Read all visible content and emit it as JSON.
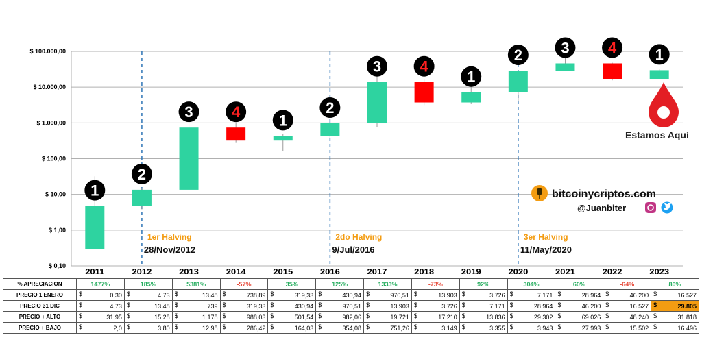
{
  "chart_data": {
    "type": "candlestick",
    "y_scale": "log",
    "ylim": [
      0.1,
      100000
    ],
    "y_ticks": [
      "$ 100.000,00",
      "$ 10.000,00",
      "$ 1.000,00",
      "$ 100,00",
      "$ 10,00",
      "$ 1,00",
      "$ 0,10"
    ],
    "categories": [
      "2011",
      "2012",
      "2013",
      "2014",
      "2015",
      "2016",
      "2017",
      "2018",
      "2019",
      "2020",
      "2021",
      "2022",
      "2023"
    ],
    "open": [
      0.3,
      4.73,
      13.48,
      738.89,
      319.33,
      430.94,
      970.51,
      13903,
      3726,
      7171,
      28964,
      46200,
      16527
    ],
    "close": [
      4.73,
      13.48,
      739,
      319.33,
      430.94,
      970.51,
      13903,
      3726,
      7171,
      28964,
      46200,
      16527,
      29805
    ],
    "high": [
      31.95,
      15.28,
      1178,
      988.03,
      501.54,
      982.06,
      19721,
      17210,
      13836,
      29302,
      69026,
      48240,
      31818
    ],
    "low": [
      2.0,
      3.8,
      12.98,
      286.42,
      164.03,
      354.08,
      751.26,
      3149,
      3355,
      3943,
      27993,
      15502,
      16496
    ],
    "cycle_phase": [
      "1",
      "2",
      "3",
      "4",
      "1",
      "2",
      "3",
      "4",
      "1",
      "2",
      "3",
      "4",
      "1"
    ],
    "colors": {
      "up": "#2ed3a0",
      "down": "#ff0000",
      "grid": "#b0b0b0",
      "halving_line": "#2e75b6",
      "accent": "#f39c12",
      "marker": "#e31e24"
    },
    "halvings": [
      {
        "position": 1.5,
        "label": "1er Halving",
        "date": "28/Nov/2012"
      },
      {
        "position": 5.5,
        "label": "2do Halving",
        "date": "9/Jul/2016"
      },
      {
        "position": 9.5,
        "label": "3er Halving",
        "date": "11/May/2020"
      }
    ],
    "annotation": {
      "text": "Estamos Aquí",
      "category": "2023"
    }
  },
  "branding": {
    "site": "bitcoinycriptos.com",
    "handle": "@Juanbiter",
    "icons": [
      "microphone-icon",
      "instagram-icon",
      "twitter-icon"
    ]
  },
  "table": {
    "currency": "$",
    "rows": [
      {
        "label": "% APRECIACION",
        "kind": "pct",
        "values": [
          "1477%",
          "185%",
          "5381%",
          "-57%",
          "35%",
          "125%",
          "1333%",
          "-73%",
          "92%",
          "304%",
          "60%",
          "-64%",
          "80%"
        ]
      },
      {
        "label": "PRECIO 1 ENERO",
        "kind": "val",
        "values": [
          "0,30",
          "4,73",
          "13,48",
          "738,89",
          "319,33",
          "430,94",
          "970,51",
          "13.903",
          "3.726",
          "7.171",
          "28.964",
          "46.200",
          "16.527"
        ]
      },
      {
        "label": "PRECIO 31 DIC",
        "kind": "val",
        "values": [
          "4,73",
          "13,48",
          "739",
          "319,33",
          "430,94",
          "970,51",
          "13.903",
          "3.726",
          "7.171",
          "28.964",
          "46.200",
          "16.527",
          "29.805"
        ],
        "highlight_index": 12
      },
      {
        "label": "PRECIO + ALTO",
        "kind": "val",
        "values": [
          "31,95",
          "15,28",
          "1.178",
          "988,03",
          "501,54",
          "982,06",
          "19.721",
          "17.210",
          "13.836",
          "29.302",
          "69.026",
          "48.240",
          "31.818"
        ]
      },
      {
        "label": "PRECIO + BAJO",
        "kind": "val",
        "values": [
          "2,0",
          "3,80",
          "12,98",
          "286,42",
          "164,03",
          "354,08",
          "751,26",
          "3.149",
          "3.355",
          "3.943",
          "27.993",
          "15.502",
          "16.496"
        ]
      }
    ]
  }
}
